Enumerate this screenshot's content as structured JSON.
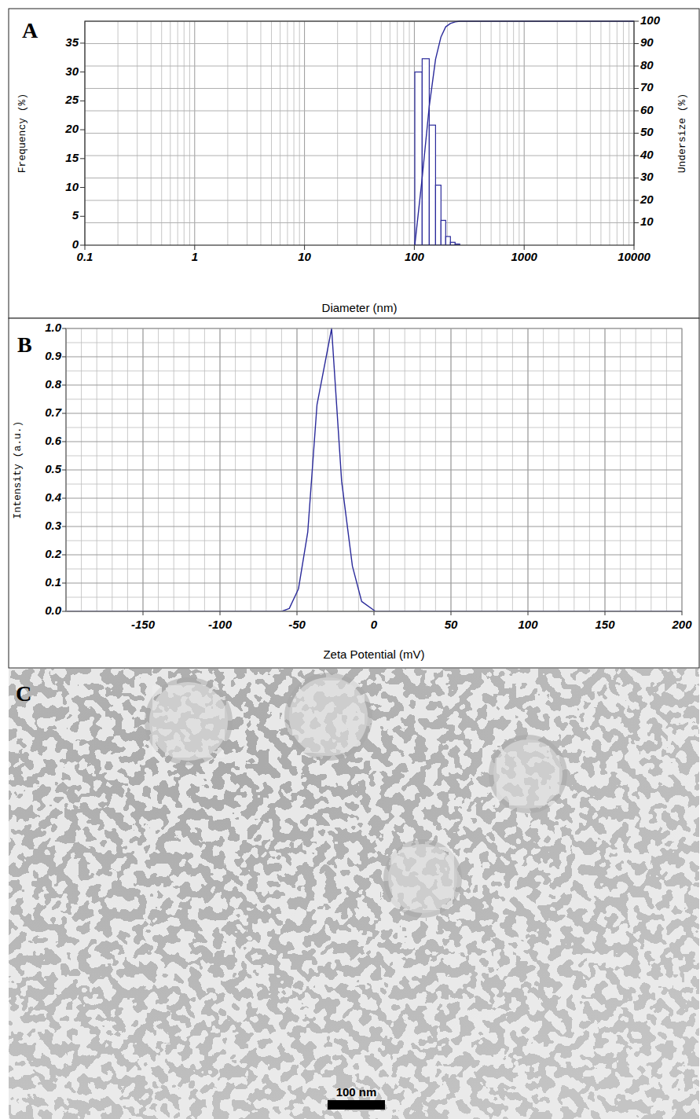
{
  "chart_data": [
    {
      "type": "histogram",
      "title": "A",
      "x_label": "Diameter (nm)",
      "y_label": "Frequency (%)",
      "y2_label": "Undersize (%)",
      "log": "x",
      "grid": true,
      "color": "#2b2b9b",
      "bins": [
        101,
        117.8,
        136.7,
        156,
        174.8,
        193,
        213,
        235,
        259
      ],
      "values": [
        30,
        32.3,
        20.8,
        10.4,
        4.3,
        1.5,
        0.5,
        0.2
      ],
      "xlim": [
        0.1,
        10000
      ],
      "xticks": [
        0.1,
        1,
        10,
        100,
        1000,
        10000
      ],
      "ylim": [
        0,
        38.8
      ],
      "yticks": [
        0,
        5,
        10,
        15,
        20,
        25,
        30,
        35
      ],
      "y2lim": [
        0,
        100
      ],
      "y2ticks": [
        10,
        20,
        30,
        40,
        50,
        60,
        70,
        80,
        90,
        100
      ],
      "series": [
        {
          "type": "line",
          "axis": "y2",
          "color": "#2b2b9b",
          "x": [
            101,
            117.8,
            136.7,
            156,
            174.8,
            193,
            213,
            235,
            259,
            10000
          ],
          "values": [
            0,
            30,
            62,
            83,
            93,
            97.5,
            99,
            99.7,
            100,
            100
          ]
        }
      ]
    },
    {
      "type": "line",
      "title": "B",
      "x_label": "Zeta Potential (mV)",
      "y_label": "Intensity (a.u.)",
      "grid": true,
      "color": "#2b2b9b",
      "x": [
        -200,
        -60,
        -55,
        -49,
        -43,
        -37,
        -27.5,
        -21,
        -14,
        -8,
        1,
        200
      ],
      "values": [
        0,
        0,
        0.01,
        0.08,
        0.28,
        0.73,
        1.0,
        0.46,
        0.16,
        0.035,
        0,
        0
      ],
      "xlim": [
        -200,
        200
      ],
      "xticks": [
        -150,
        -100,
        -50,
        0,
        50,
        100,
        150,
        200
      ],
      "ylim": [
        0,
        1
      ],
      "yticks": [
        {
          "value": 0,
          "label": "0.0"
        },
        0.1,
        0.2,
        0.3,
        0.4,
        0.5,
        0.6,
        0.7,
        0.8,
        0.9,
        {
          "value": 1,
          "label": "1.0"
        }
      ]
    }
  ],
  "image": {
    "label": "C",
    "scale_bar": "100 nm"
  }
}
